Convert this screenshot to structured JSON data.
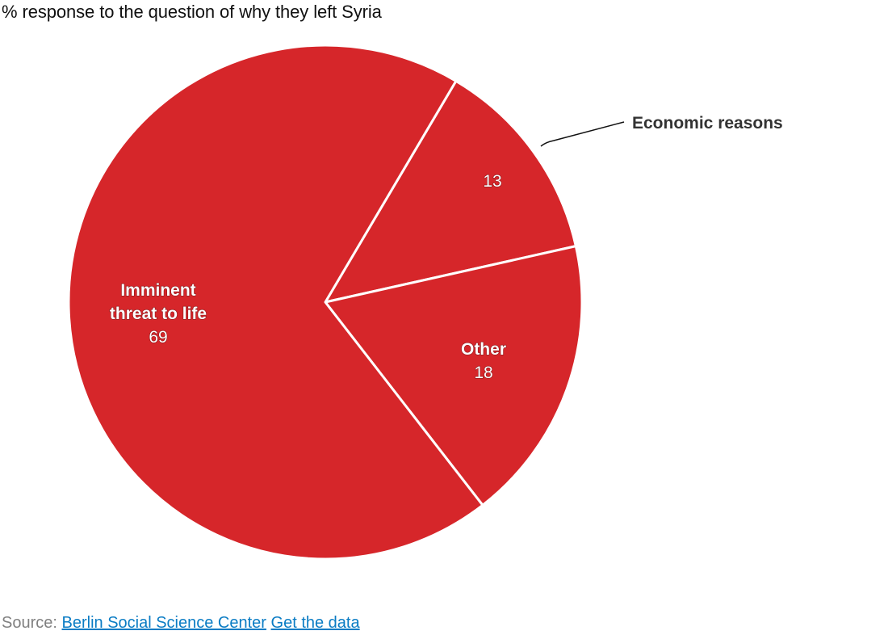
{
  "header": {
    "title": "% response to the question of why they left Syria"
  },
  "chart_data": {
    "type": "pie",
    "title": "% response to the question of why they left Syria",
    "categories": [
      "Economic reasons",
      "Other",
      "Imminent threat to life"
    ],
    "values": [
      13,
      18,
      69
    ],
    "unit": "%",
    "start_angle_deg_from_top": 30.6,
    "direction": "clockwise",
    "slice_color": "#d6262a",
    "separator_color": "#ffffff",
    "labels": [
      {
        "category": "Economic reasons",
        "inside_text": "13",
        "callout": "Economic reasons",
        "position": "outside-with-leader-line"
      },
      {
        "category": "Other",
        "inside_text": [
          "Other",
          "18"
        ],
        "position": "inside"
      },
      {
        "category": "Imminent threat to life",
        "inside_text": [
          "Imminent",
          "threat to life",
          "69"
        ],
        "position": "inside"
      }
    ],
    "legend": null
  },
  "labels": {
    "economic_value": "13",
    "economic_callout": "Economic reasons",
    "other_name": "Other",
    "other_value": "18",
    "imminent_line1": "Imminent",
    "imminent_line2": "threat to life",
    "imminent_value": "69"
  },
  "footer": {
    "source_prefix": "Source:",
    "source_link": "Berlin Social Science Center",
    "data_link": "Get the data"
  }
}
